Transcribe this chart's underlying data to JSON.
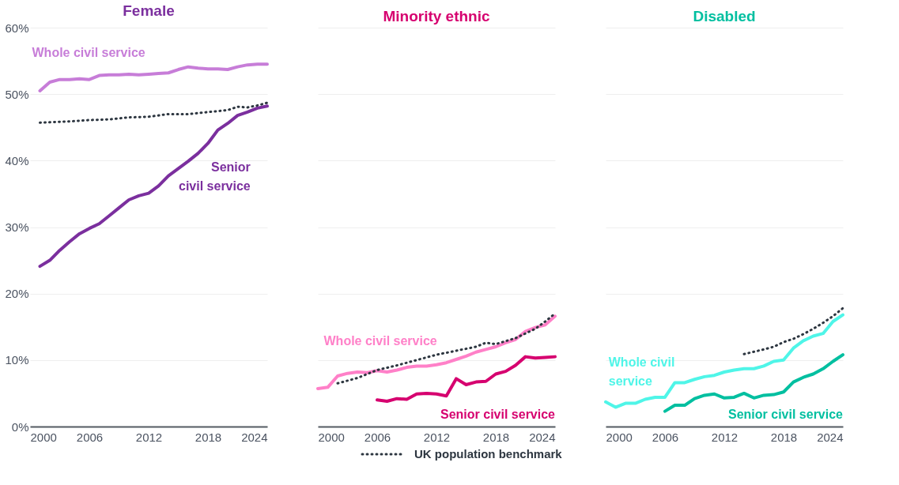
{
  "chart_data": [
    {
      "type": "line",
      "title": "Female",
      "xlim": [
        2000,
        2024
      ],
      "xticks": [
        2000,
        2006,
        2012,
        2018,
        2024
      ],
      "ylim": [
        0,
        60
      ],
      "yticks": [
        {
          "value": 0,
          "label": "0%"
        },
        {
          "value": 10,
          "label": "10%"
        },
        {
          "value": 20,
          "label": "20%"
        },
        {
          "value": 30,
          "label": "30%"
        },
        {
          "value": 40,
          "label": "40%"
        },
        {
          "value": 50,
          "label": "50%"
        },
        {
          "value": 60,
          "label": "60%"
        }
      ],
      "grid": "y",
      "legend": "bottom",
      "series": [
        {
          "name": "Whole civil service",
          "color": "#c77dd8",
          "line_style": "solid",
          "x": [
            2001,
            2002,
            2003,
            2004,
            2005,
            2006,
            2007,
            2008,
            2009,
            2010,
            2011,
            2012,
            2013,
            2014,
            2015,
            2016,
            2017,
            2018,
            2019,
            2020,
            2021,
            2022,
            2023,
            2024
          ],
          "values": [
            50.5,
            51.8,
            52.2,
            52.2,
            52.3,
            52.2,
            52.8,
            52.9,
            52.9,
            53.0,
            52.9,
            53.0,
            53.1,
            53.2,
            53.7,
            54.1,
            53.9,
            53.8,
            53.8,
            53.7,
            54.1,
            54.4,
            54.5,
            54.5
          ]
        },
        {
          "name": "Senior civil service",
          "color": "#7b2f9e",
          "line_style": "solid",
          "x": [
            2001,
            2002,
            2003,
            2004,
            2005,
            2006,
            2007,
            2008,
            2009,
            2010,
            2011,
            2012,
            2013,
            2014,
            2015,
            2016,
            2017,
            2018,
            2019,
            2020,
            2021,
            2022,
            2023,
            2024
          ],
          "values": [
            24.1,
            25.0,
            26.5,
            27.8,
            29.0,
            29.8,
            30.5,
            31.7,
            32.9,
            34.1,
            34.7,
            35.1,
            36.2,
            37.7,
            38.8,
            39.9,
            41.1,
            42.6,
            44.6,
            45.6,
            46.8,
            47.3,
            47.9,
            48.2
          ]
        },
        {
          "name": "UK population benchmark",
          "color": "#2d3640",
          "line_style": "dotted",
          "x": [
            2001,
            2004,
            2006,
            2008,
            2010,
            2012,
            2014,
            2016,
            2018,
            2020,
            2021,
            2022,
            2023,
            2024
          ],
          "values": [
            45.7,
            45.9,
            46.1,
            46.2,
            46.5,
            46.6,
            47.0,
            47.0,
            47.3,
            47.6,
            48.1,
            48.0,
            48.3,
            48.7
          ]
        }
      ]
    },
    {
      "type": "line",
      "title": "Minority ethnic",
      "xlim": [
        2000,
        2024
      ],
      "xticks": [
        2000,
        2006,
        2012,
        2018,
        2024
      ],
      "ylim": [
        0,
        60
      ],
      "yticks": [
        {
          "value": 0,
          "label": null
        },
        {
          "value": 10,
          "label": null
        },
        {
          "value": 20,
          "label": null
        },
        {
          "value": 30,
          "label": null
        },
        {
          "value": 40,
          "label": null
        },
        {
          "value": 50,
          "label": null
        },
        {
          "value": 60,
          "label": null
        }
      ],
      "grid": "y",
      "tick_labels": "x",
      "series": [
        {
          "name": "Whole civil service",
          "color": "#ff80c8",
          "line_style": "solid",
          "x": [
            2000,
            2001,
            2002,
            2003,
            2004,
            2005,
            2006,
            2007,
            2008,
            2009,
            2010,
            2011,
            2012,
            2013,
            2014,
            2015,
            2016,
            2017,
            2018,
            2019,
            2020,
            2021,
            2022,
            2023,
            2024
          ],
          "values": [
            5.7,
            5.9,
            7.6,
            8.0,
            8.2,
            8.1,
            8.4,
            8.2,
            8.5,
            8.9,
            9.1,
            9.1,
            9.3,
            9.6,
            10.1,
            10.6,
            11.2,
            11.6,
            12.0,
            12.6,
            13.1,
            14.3,
            14.9,
            15.3,
            16.6
          ]
        },
        {
          "name": "Senior civil service",
          "color": "#d6006f",
          "line_style": "solid",
          "x": [
            2006,
            2007,
            2008,
            2009,
            2010,
            2011,
            2012,
            2013,
            2014,
            2015,
            2016,
            2017,
            2018,
            2019,
            2020,
            2021,
            2022,
            2023,
            2024
          ],
          "values": [
            4.0,
            3.8,
            4.2,
            4.1,
            4.9,
            5.0,
            4.9,
            4.6,
            7.2,
            6.3,
            6.7,
            6.8,
            7.9,
            8.3,
            9.2,
            10.5,
            10.3,
            10.4,
            10.5
          ]
        },
        {
          "name": "UK population benchmark",
          "color": "#2d3640",
          "line_style": "dotted",
          "x": [
            2002,
            2004,
            2006,
            2008,
            2010,
            2012,
            2014,
            2016,
            2017,
            2018,
            2020,
            2022,
            2023,
            2024
          ],
          "values": [
            6.5,
            7.3,
            8.5,
            9.2,
            10.0,
            10.8,
            11.4,
            12.0,
            12.6,
            12.4,
            13.3,
            14.7,
            15.8,
            17.0
          ]
        }
      ]
    },
    {
      "type": "line",
      "title": "Disabled",
      "xlim": [
        2000,
        2024
      ],
      "xticks": [
        2000,
        2006,
        2012,
        2018,
        2024
      ],
      "ylim": [
        0,
        60
      ],
      "yticks": [
        {
          "value": 0,
          "label": null
        },
        {
          "value": 10,
          "label": null
        },
        {
          "value": 20,
          "label": null
        },
        {
          "value": 30,
          "label": null
        },
        {
          "value": 40,
          "label": null
        },
        {
          "value": 50,
          "label": null
        },
        {
          "value": 60,
          "label": null
        }
      ],
      "grid": "y",
      "tick_labels": "x",
      "series": [
        {
          "name": "Whole civil service",
          "color": "#4ff5e8",
          "line_style": "solid",
          "x": [
            2000,
            2001,
            2002,
            2003,
            2004,
            2005,
            2006,
            2007,
            2008,
            2009,
            2010,
            2011,
            2012,
            2013,
            2014,
            2015,
            2016,
            2017,
            2018,
            2019,
            2020,
            2021,
            2022,
            2023,
            2024
          ],
          "values": [
            3.7,
            2.9,
            3.5,
            3.5,
            4.1,
            4.4,
            4.4,
            6.6,
            6.6,
            7.1,
            7.5,
            7.7,
            8.2,
            8.5,
            8.7,
            8.7,
            9.1,
            9.8,
            10.0,
            11.8,
            12.9,
            13.6,
            14.0,
            15.8,
            16.8
          ]
        },
        {
          "name": "Senior civil service",
          "color": "#00bfa0",
          "line_style": "solid",
          "x": [
            2006,
            2007,
            2008,
            2009,
            2010,
            2011,
            2012,
            2013,
            2014,
            2015,
            2016,
            2017,
            2018,
            2019,
            2020,
            2021,
            2022,
            2023,
            2024
          ],
          "values": [
            2.3,
            3.2,
            3.2,
            4.2,
            4.7,
            4.9,
            4.3,
            4.4,
            5.0,
            4.3,
            4.7,
            4.8,
            5.2,
            6.7,
            7.4,
            7.9,
            8.7,
            9.8,
            10.8
          ]
        },
        {
          "name": "UK population benchmark",
          "color": "#2d3640",
          "line_style": "dotted",
          "x": [
            2014,
            2016,
            2017,
            2018,
            2019,
            2020,
            2021,
            2022,
            2023,
            2024
          ],
          "values": [
            10.9,
            11.6,
            12.0,
            12.7,
            13.2,
            13.9,
            14.7,
            15.6,
            16.6,
            17.8
          ]
        }
      ]
    }
  ]
}
